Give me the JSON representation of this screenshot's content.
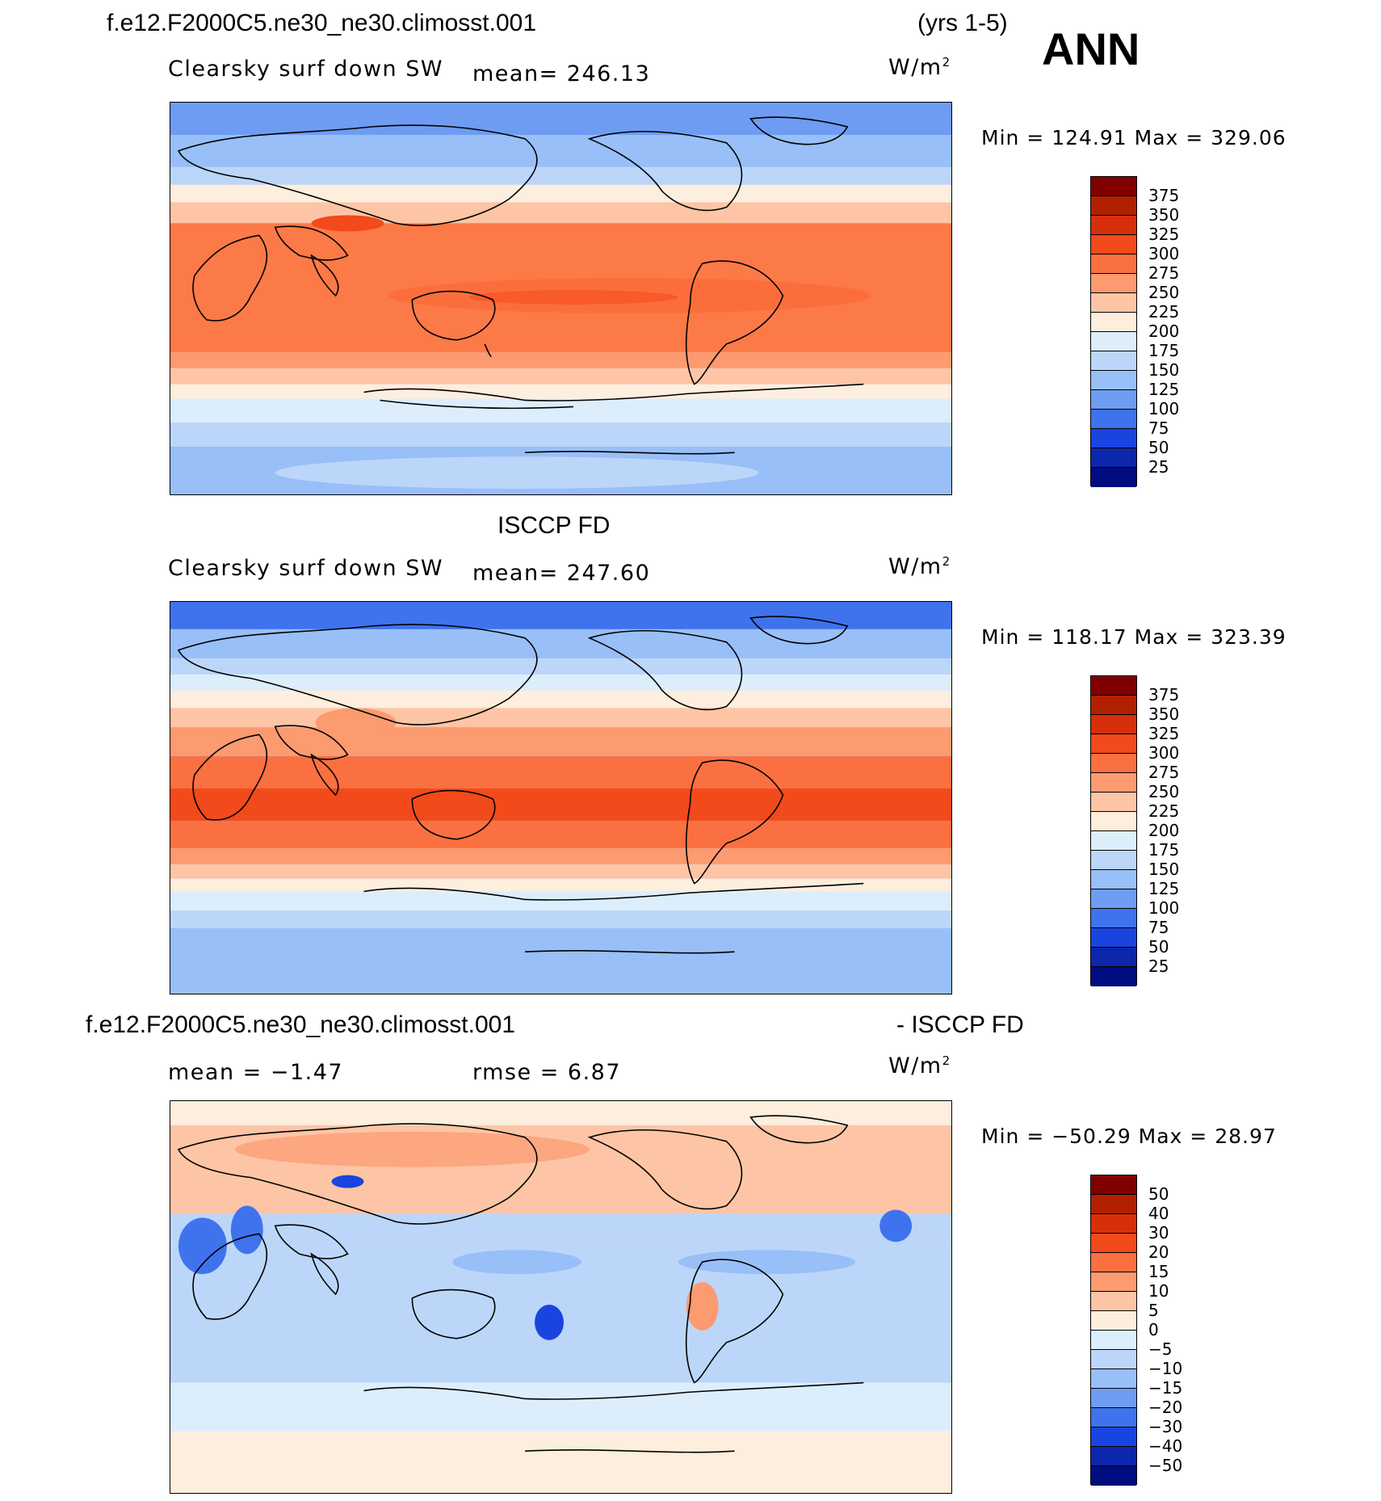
{
  "header": {
    "case_name": "f.e12.F2000C5.ne30_ne30.climosst.001",
    "years": "(yrs 1-5)",
    "season": "ANN"
  },
  "panels": [
    {
      "variable": "Clearsky surf down SW",
      "mean_text": "mean= 246.13",
      "unit_base": "W/m",
      "unit_exp": "2",
      "minmax_text": "Min = 124.91 Max = 329.06",
      "colorbar_labels": [
        "375",
        "350",
        "325",
        "300",
        "275",
        "250",
        "225",
        "200",
        "175",
        "150",
        "125",
        "100",
        "75",
        "50",
        "25"
      ]
    },
    {
      "dataset_title": "ISCCP FD",
      "variable": "Clearsky surf down SW",
      "mean_text": "mean= 247.60",
      "unit_base": "W/m",
      "unit_exp": "2",
      "minmax_text": "Min = 118.17 Max = 323.39",
      "colorbar_labels": [
        "375",
        "350",
        "325",
        "300",
        "275",
        "250",
        "225",
        "200",
        "175",
        "150",
        "125",
        "100",
        "75",
        "50",
        "25"
      ]
    },
    {
      "diff_title_left": "f.e12.F2000C5.ne30_ne30.climosst.001",
      "diff_title_right": "- ISCCP FD",
      "mean_text": "mean =   −1.47",
      "rmse_text": "rmse =    6.87",
      "unit_base": "W/m",
      "unit_exp": "2",
      "minmax_text": "Min = −50.29 Max =  28.97",
      "colorbar_labels": [
        "50",
        "40",
        "30",
        "20",
        "15",
        "10",
        "5",
        "0",
        "−5",
        "−10",
        "−15",
        "−20",
        "−30",
        "−40",
        "−50"
      ]
    }
  ],
  "colorbar_colors": [
    "#800000",
    "#b22000",
    "#d62f0a",
    "#f24a1a",
    "#fb7040",
    "#fc9a70",
    "#fdc5a5",
    "#fdeedd",
    "#dceefc",
    "#bcd6fa",
    "#98bff7",
    "#6e9cf2",
    "#3f73ee",
    "#1a44e0",
    "#0c26ac",
    "#000d80"
  ]
}
